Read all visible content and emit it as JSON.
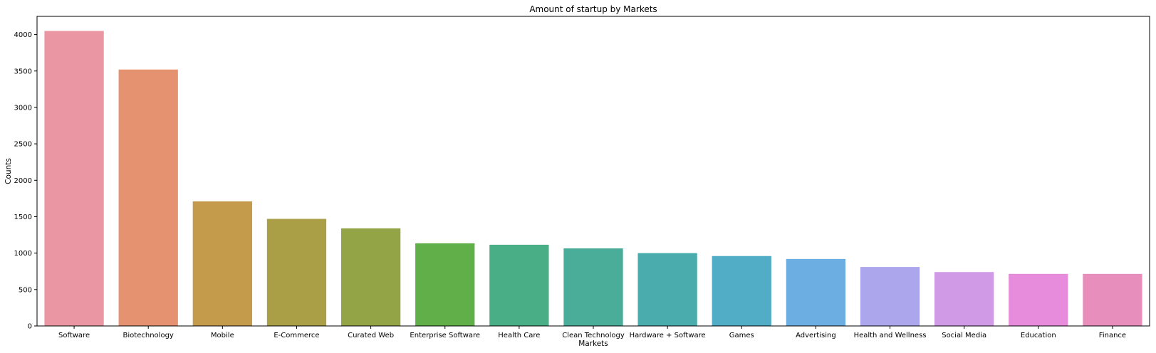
{
  "chart_data": {
    "type": "bar",
    "title": "Amount of startup by Markets",
    "xlabel": "Markets",
    "ylabel": "Counts",
    "ylim": [
      0,
      4250
    ],
    "yticks": [
      0,
      500,
      1000,
      1500,
      2000,
      2500,
      3000,
      3500,
      4000
    ],
    "grid": false,
    "categories": [
      "Software",
      "Biotechnology",
      "Mobile",
      "E-Commerce",
      "Curated Web",
      "Enterprise Software",
      "Health Care",
      "Clean Technology",
      "Hardware + Software",
      "Games",
      "Advertising",
      "Health and Wellness",
      "Social Media",
      "Education",
      "Finance"
    ],
    "values": [
      4050,
      3520,
      1710,
      1470,
      1340,
      1135,
      1115,
      1065,
      1000,
      960,
      920,
      810,
      740,
      715,
      715
    ],
    "colors": [
      "#ea96a3",
      "#e4926f",
      "#c49a4b",
      "#aa9f46",
      "#92a445",
      "#60af48",
      "#49ae85",
      "#4aad9a",
      "#4bacae",
      "#51adc6",
      "#6daee2",
      "#aca7ec",
      "#d09ae7",
      "#e78bdc",
      "#e88ebc"
    ]
  }
}
